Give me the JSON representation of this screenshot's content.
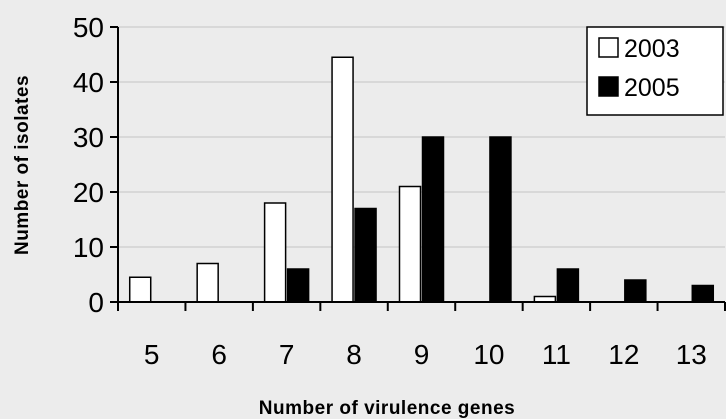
{
  "chart_data": {
    "type": "bar",
    "title": "",
    "xlabel": "Number of virulence genes",
    "ylabel": "Number of isolates",
    "categories": [
      "5",
      "6",
      "7",
      "8",
      "9",
      "10",
      "11",
      "12",
      "13"
    ],
    "series": [
      {
        "name": "2003",
        "values": [
          4.5,
          7,
          18,
          44.5,
          21,
          0,
          1,
          0,
          0
        ],
        "fill": "#ffffff",
        "stroke": "#000000"
      },
      {
        "name": "2005",
        "values": [
          0,
          0,
          6,
          17,
          30,
          30,
          6,
          4,
          3
        ],
        "fill": "#000000",
        "stroke": "#000000"
      }
    ],
    "ylim": [
      0,
      50
    ],
    "yticks": [
      0,
      10,
      20,
      30,
      40,
      50
    ],
    "grid": true,
    "legend_position": "top-right",
    "background": "#ececec"
  }
}
